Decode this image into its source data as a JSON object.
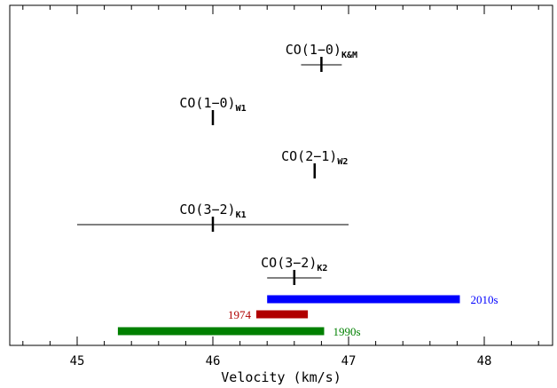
{
  "chart_data": {
    "type": "errorbar",
    "xlabel": "Velocity (km/s)",
    "xlim": [
      44.5,
      48.5
    ],
    "x_ticks": [
      45,
      46,
      47,
      48
    ],
    "x_minor_step": 0.2,
    "y_ticks_shown": false,
    "grid": false,
    "measurements": [
      {
        "base": "CO(1−0)",
        "sub": "K&M",
        "velocity": 46.8,
        "err_low": 46.65,
        "err_high": 46.95
      },
      {
        "base": "CO(1−0)",
        "sub": "W1",
        "velocity": 46.0,
        "err_low": null,
        "err_high": null
      },
      {
        "base": "CO(2−1)",
        "sub": "W2",
        "velocity": 46.75,
        "err_low": null,
        "err_high": null
      },
      {
        "base": "CO(3−2)",
        "sub": "K1",
        "velocity": 46.0,
        "err_low": 45.0,
        "err_high": 47.0
      },
      {
        "base": "CO(3−2)",
        "sub": "K2",
        "velocity": 46.6,
        "err_low": 46.4,
        "err_high": 46.8
      }
    ],
    "ranges": [
      {
        "label": "2010s",
        "start": 46.4,
        "end": 47.82,
        "color": "#0000ff"
      },
      {
        "label": "1974",
        "start": 46.32,
        "end": 46.7,
        "color": "#b00000"
      },
      {
        "label": "1990s",
        "start": 45.3,
        "end": 46.82,
        "color": "#008000"
      }
    ]
  }
}
